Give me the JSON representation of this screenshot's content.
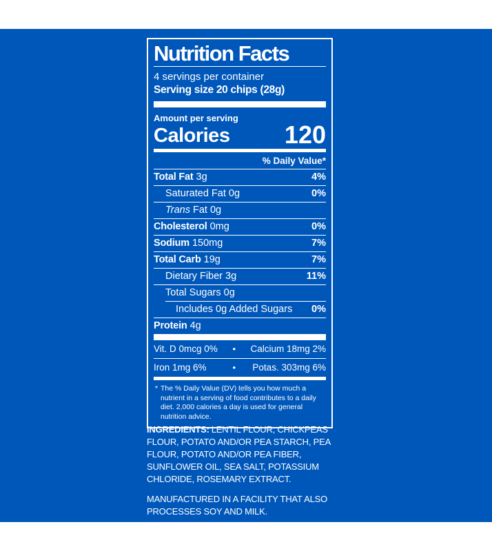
{
  "colors": {
    "panel_blue": "#0057ba",
    "label_text": "#ffffff"
  },
  "nutrition_label": {
    "title": "Nutrition Facts",
    "servings_per_container": "4 servings per container",
    "serving_size": "Serving size 20 chips (28g)",
    "amount_per_serving": "Amount per serving",
    "calories_label": "Calories",
    "calories_value": "120",
    "daily_value_header": "% Daily Value*",
    "rows": [
      {
        "bold": "Total Fat",
        "regular": "3g",
        "dv": "4%"
      },
      {
        "regular": "Saturated Fat 0g",
        "dv": "0%"
      },
      {
        "italic": "Trans",
        "regular": "Fat 0g",
        "dv": ""
      },
      {
        "bold": "Cholesterol",
        "regular": "0mg",
        "dv": "0%"
      },
      {
        "bold": "Sodium",
        "regular": "150mg",
        "dv": "7%"
      },
      {
        "bold": "Total Carb",
        "regular": "19g",
        "dv": "7%"
      },
      {
        "regular": "Dietary Fiber 3g",
        "dv": "11%"
      },
      {
        "regular": "Total Sugars 0g",
        "dv": ""
      },
      {
        "regular": "Includes 0g Added Sugars",
        "dv": "0%"
      },
      {
        "bold": "Protein",
        "regular": "4g",
        "dv": ""
      }
    ],
    "micronutrients": [
      {
        "left": "Vit. D 0mcg 0%",
        "bullet": "•",
        "right": "Calcium 18mg 2%"
      },
      {
        "left": "Iron 1mg 6%",
        "bullet": "•",
        "right": "Potas. 303mg 6%"
      }
    ],
    "footnote_marker": "*",
    "footnote": "The % Daily Value (DV) tells you how much a nutrient in a serving of food contributes to a daily diet. 2,000 calories a day is used for general nutrition advice."
  },
  "ingredients": {
    "label": "INGREDIENTS:",
    "text": "LENTIL FLOUR, CHICKPEAS FLOUR, POTATO AND/OR PEA STARCH, PEA FLOUR, POTATO AND/OR PEA FIBER, SUNFLOWER OIL, SEA SALT, POTASSIUM CHLORIDE, ROSEMARY EXTRACT."
  },
  "allergen_statement": "MANUFACTURED IN A FACILITY THAT ALSO PROCESSES SOY AND MILK."
}
